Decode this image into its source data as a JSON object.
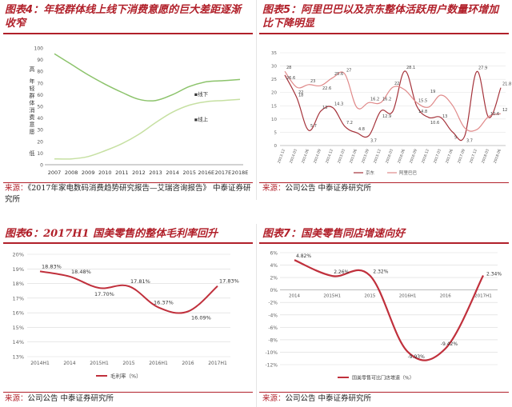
{
  "panels": {
    "p4": {
      "title_prefix": "图表",
      "title_num": "4",
      "title_text": "：年轻群体线上线下消费意愿的巨大差距逐渐收窄",
      "source_label": "来源：",
      "source_text": "《2017年家电数码消费趋势研究报告—艾瑞咨询报告》 中泰证券研究所"
    },
    "p5": {
      "title_prefix": "图表",
      "title_num": "5",
      "title_text": "：阿里巴巴以及京东整体活跃用户数量环增加比下降明显",
      "source_label": "来源：",
      "source_text": "公司公告 中泰证券研究所"
    },
    "p6": {
      "title_prefix": "图表",
      "title_num": "6",
      "title_text": "：2017H1 国美零售的整体毛利率回升",
      "source_label": "来源：",
      "source_text": "公司公告 中泰证券研究所"
    },
    "p7": {
      "title_prefix": "图表",
      "title_num": "7",
      "title_text": "：国美零售同店增速向好",
      "source_label": "来源：",
      "source_text": "公司公告 中泰证券研究所"
    }
  },
  "colors": {
    "title_red": "#b1202a",
    "line_green": "#8cc36b",
    "line_light_green": "#c6e0a2",
    "line_darkred": "#a5333b",
    "line_pink": "#e08a8a"
  },
  "chart_data": [
    {
      "id": "p4",
      "type": "line",
      "x": [
        "2007",
        "2008",
        "2009",
        "2010",
        "2011",
        "2012",
        "2013",
        "2014",
        "2015",
        "2016E",
        "2017E",
        "2018E"
      ],
      "ylim": [
        0,
        100
      ],
      "yticks": [
        "0",
        "10",
        "20",
        "30",
        "40",
        "50",
        "60",
        "70",
        "80",
        "90",
        "100"
      ],
      "ylabel": "年轻群体消费意愿",
      "y_high_label": "高",
      "y_low_label": "低",
      "series": [
        {
          "name": "线下",
          "values": [
            95,
            86,
            77,
            69,
            62,
            56,
            55,
            60,
            67,
            71,
            72,
            73
          ]
        },
        {
          "name": "线上",
          "values": [
            5,
            5,
            7,
            12,
            18,
            26,
            36,
            45,
            51,
            54,
            55,
            56
          ]
        }
      ],
      "grid": false
    },
    {
      "id": "p5",
      "type": "line",
      "x": [
        "2013.12",
        "2014.03",
        "2014.06",
        "2014.09",
        "2014.12",
        "2015.03",
        "2015.06",
        "2015.09",
        "2015.12",
        "2016.03",
        "2016.06",
        "2016.09",
        "2016.12",
        "2017.03",
        "2017.06",
        "2017.09",
        "2017.12",
        "2018.03",
        "2018.06"
      ],
      "ylim": [
        0,
        35
      ],
      "yticks": [
        "0",
        "5",
        "10",
        "15",
        "20",
        "25",
        "30",
        "35"
      ],
      "series": [
        {
          "name": "京东",
          "values": [
            26.6,
            18,
            5.7,
            13,
            14.3,
            7.2,
            4.8,
            3.7,
            13.0,
            12.9,
            28.1,
            14.8,
            10.6,
            10.6,
            5,
            3.7,
            27.9,
            10.6,
            21.8
          ]
        },
        {
          "name": "阿里巴巴",
          "values": [
            28.0,
            22.0,
            23.0,
            22.6,
            25.6,
            27.0,
            14.4,
            16.2,
            16.2,
            22.0,
            21.0,
            16.2,
            14.5,
            19.0,
            15.0,
            6.6,
            6.0,
            11.0,
            12.0
          ]
        }
      ],
      "data_labels": [
        "28",
        "26.6",
        "22",
        "23",
        "22.6",
        "25.6",
        "27",
        "18",
        "5.7",
        "13",
        "14.3",
        "7.2",
        "4.8",
        "3.7",
        "16.2",
        "16.2",
        "12.9",
        "28.1",
        "22",
        "15.5",
        "14.8",
        "19",
        "13",
        "10.6",
        "5",
        "3.7",
        "27.9",
        "10.6",
        "21.8",
        "12"
      ],
      "legend": "bottom",
      "grid": true
    },
    {
      "id": "p6",
      "type": "line",
      "categories": [
        "2014H1",
        "2014",
        "2015H1",
        "2015",
        "2016H1",
        "2016",
        "2017H1"
      ],
      "values": [
        18.83,
        18.48,
        17.7,
        17.81,
        16.37,
        16.09,
        17.83
      ],
      "value_labels": [
        "18.83%",
        "18.48%",
        "17.70%",
        "17.81%",
        "16.37%",
        "16.09%",
        "17.83%"
      ],
      "ylim": [
        13,
        20
      ],
      "yticks": [
        "13%",
        "14%",
        "15%",
        "16%",
        "17%",
        "18%",
        "19%",
        "20%"
      ],
      "series_name": "毛利率（%）",
      "legend": "bottom",
      "grid": true
    },
    {
      "id": "p7",
      "type": "line",
      "categories": [
        "2014",
        "2015H1",
        "2015",
        "2016H1",
        "2016",
        "2017H1"
      ],
      "values": [
        4.82,
        2.26,
        2.32,
        -9.93,
        -9.42,
        2.34
      ],
      "value_labels": [
        "4.82%",
        "2.26%",
        "2.32%",
        "-9.93%",
        "-9.42%",
        "2.34%"
      ],
      "ylim": [
        -12,
        6
      ],
      "yticks": [
        "-12%",
        "-10%",
        "-8%",
        "-6%",
        "-4%",
        "-2%",
        "0%",
        "2%",
        "4%",
        "6%"
      ],
      "series_name": "国美零售可比门店增速（%）",
      "legend": "bottom",
      "grid": true
    }
  ]
}
